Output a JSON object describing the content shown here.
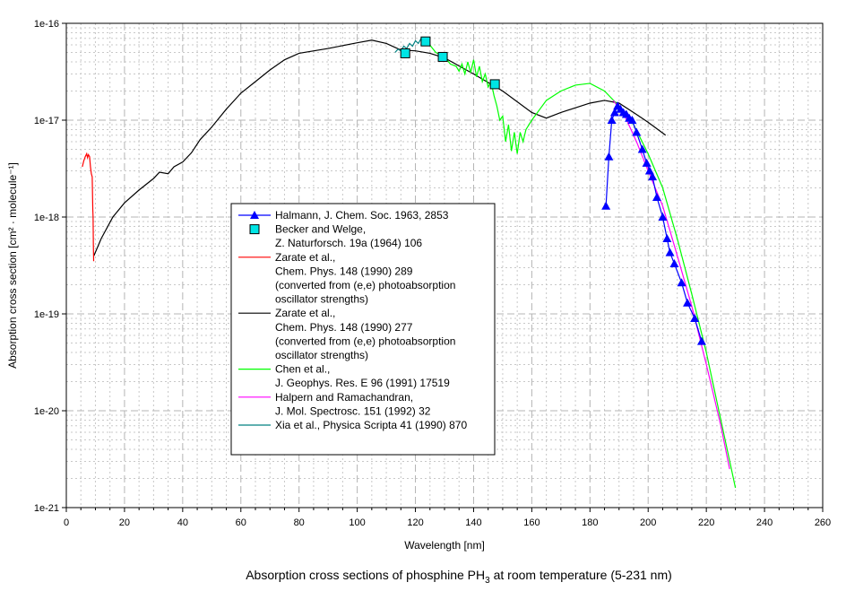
{
  "chart_data": {
    "type": "line",
    "title": "Absorption cross sections of phosphine PH3 at room temperature (5-231 nm)",
    "title_main": "Absorption cross sections of phosphine PH",
    "title_sub": "3",
    "title_tail": " at room temperature (5-231 nm)",
    "xlabel": "Wavelength [nm]",
    "ylabel": "Absorption cross section [cm² · molecule⁻¹]",
    "xlim": [
      0,
      260
    ],
    "ylim": [
      1e-21,
      1e-16
    ],
    "yscale": "log",
    "grid": true,
    "legend_placement": "center-left",
    "xticks": [
      "0",
      "20",
      "40",
      "60",
      "80",
      "100",
      "120",
      "140",
      "160",
      "180",
      "200",
      "220",
      "240",
      "260"
    ],
    "yticks": [
      "1e-21",
      "1e-20",
      "1e-19",
      "1e-18",
      "1e-17",
      "1e-16"
    ],
    "series": [
      {
        "name": "Halmann, J. Chem. Soc. 1963, 2853",
        "legend": [
          "Halmann, J. Chem. Soc. 1963, 2853"
        ],
        "color": "#0000ff",
        "marker": "triangle",
        "line": true,
        "x": [
          185.5,
          186.5,
          187.5,
          188.5,
          189.5,
          190.5,
          191.5,
          192.5,
          193.5,
          194.5,
          196,
          198,
          199.5,
          200.5,
          201.5,
          203,
          205,
          206.5,
          207.5,
          209,
          211.5,
          213.5,
          216,
          218.4
        ],
        "y": [
          1.3e-18,
          4.2e-18,
          1e-17,
          1.2e-17,
          1.4e-17,
          1.3e-17,
          1.2e-17,
          1.15e-17,
          1.05e-17,
          1e-17,
          7.5e-18,
          5e-18,
          3.6e-18,
          3e-18,
          2.6e-18,
          1.6e-18,
          1e-18,
          6e-19,
          4.3e-19,
          3.3e-19,
          2.1e-19,
          1.3e-19,
          9e-20,
          5.2e-20
        ]
      },
      {
        "name": "Becker and Welge, Z. Naturforsch. 19a (1964) 106",
        "legend": [
          "Becker and Welge,",
          "Z. Naturforsch. 19a (1964) 106"
        ],
        "color": "#00e5e5",
        "marker": "square",
        "line": false,
        "x": [
          116.5,
          123.5,
          129.4,
          147.3
        ],
        "y": [
          4.9e-17,
          6.5e-17,
          4.5e-17,
          2.35e-17
        ]
      },
      {
        "name": "Zarate et al., Chem. Phys. 148 (1990) 289",
        "legend": [
          "Zarate et al.,",
          "Chem. Phys. 148 (1990) 289",
          "(converted from (e,e) photoabsorption",
          "oscillator strengths)"
        ],
        "color": "#ff0000",
        "line": true,
        "x": [
          5.5,
          6,
          6.5,
          7,
          7.3,
          7.6,
          8,
          8.3,
          8.6,
          8.9,
          9.1,
          9.2,
          9.3,
          9.4
        ],
        "y": [
          3.3e-18,
          3.8e-18,
          4.2e-18,
          4.5e-18,
          4.1e-18,
          4.4e-18,
          4.2e-18,
          3.3e-18,
          2.8e-18,
          2.6e-18,
          1.2e-18,
          1e-18,
          5e-19,
          3.5e-19
        ]
      },
      {
        "name": "Zarate et al., Chem. Phys. 148 (1990) 277",
        "legend": [
          "Zarate et al.,",
          "Chem. Phys. 148 (1990) 277",
          "(converted from (e,e) photoabsorption",
          "oscillator strengths)"
        ],
        "color": "#000000",
        "line": true,
        "x": [
          9.5,
          12,
          16,
          20,
          25,
          30,
          32,
          35,
          37,
          40,
          43,
          46,
          50,
          55,
          60,
          65,
          70,
          75,
          80,
          90,
          100,
          105,
          110,
          115,
          120,
          125,
          130,
          140,
          150,
          160,
          165,
          170,
          180,
          185,
          190,
          195,
          200,
          206
        ],
        "y": [
          4e-19,
          6e-19,
          1e-18,
          1.4e-18,
          1.9e-18,
          2.5e-18,
          2.9e-18,
          2.8e-18,
          3.3e-18,
          3.7e-18,
          4.6e-18,
          6.3e-18,
          8.5e-18,
          1.3e-17,
          1.9e-17,
          2.5e-17,
          3.3e-17,
          4.2e-17,
          4.9e-17,
          5.5e-17,
          6.3e-17,
          6.7e-17,
          6.2e-17,
          5.3e-17,
          5.2e-17,
          4.9e-17,
          4.4e-17,
          3e-17,
          2e-17,
          1.2e-17,
          1.05e-17,
          1.2e-17,
          1.5e-17,
          1.6e-17,
          1.5e-17,
          1.2e-17,
          9.5e-18,
          7e-18
        ]
      },
      {
        "name": "Chen et al., J. Geophys. Res. E 96 (1991) 17519",
        "legend": [
          "Chen et al.,",
          "J. Geophys. Res. E 96 (1991) 17519"
        ],
        "color": "#00ff00",
        "line": true,
        "x": [
          124,
          127,
          130,
          132,
          134,
          135,
          136,
          137,
          138,
          139,
          140,
          141,
          142,
          143,
          144,
          145,
          146,
          147,
          148,
          149,
          150,
          151,
          152,
          153,
          154,
          155,
          156,
          157,
          158,
          160,
          165,
          170,
          175,
          180,
          185,
          190,
          195,
          200,
          205,
          210,
          215,
          220,
          225,
          230
        ],
        "y": [
          6.5e-17,
          5e-17,
          4.5e-17,
          3.8e-17,
          3.6e-17,
          3.2e-17,
          3.8e-17,
          3e-17,
          4e-17,
          3.1e-17,
          4.2e-17,
          2.8e-17,
          3.6e-17,
          2.5e-17,
          3e-17,
          2.2e-17,
          2.5e-17,
          1.8e-17,
          1.4e-17,
          1e-17,
          1.1e-17,
          6e-18,
          9e-18,
          4.8e-18,
          7.5e-18,
          4.5e-18,
          7.5e-18,
          6e-18,
          8e-18,
          1e-17,
          1.6e-17,
          2e-17,
          2.3e-17,
          2.4e-17,
          2e-17,
          1.4e-17,
          9e-18,
          4.5e-18,
          2e-18,
          6e-19,
          1.6e-19,
          4e-20,
          8e-21,
          1.6e-21
        ]
      },
      {
        "name": "Halpern and Ramachandran, J. Mol. Spectrosc. 151 (1992) 32",
        "legend": [
          "Halpern and Ramachandran,",
          "J. Mol. Spectrosc. 151 (1992) 32"
        ],
        "color": "#ff00ff",
        "line": true,
        "x": [
          188,
          192,
          196,
          200,
          205,
          210,
          215,
          220,
          225,
          228
        ],
        "y": [
          1.6e-17,
          1.1e-17,
          6e-18,
          3e-18,
          1.3e-18,
          4e-19,
          1.2e-19,
          3e-20,
          7e-21,
          2.5e-21
        ]
      },
      {
        "name": "Xia et al., Physica Scripta 41 (1990) 870",
        "legend": [
          "Xia et al., Physica Scripta 41 (1990) 870"
        ],
        "color": "#008080",
        "line": true,
        "x": [
          113,
          114,
          115,
          116,
          117,
          118,
          119,
          120,
          121,
          122,
          123,
          124
        ],
        "y": [
          5e-17,
          5.4e-17,
          5.2e-17,
          5.8e-17,
          5.5e-17,
          6.2e-17,
          5.8e-17,
          6.6e-17,
          6.2e-17,
          7e-17,
          6.4e-17,
          7e-17
        ]
      }
    ]
  }
}
